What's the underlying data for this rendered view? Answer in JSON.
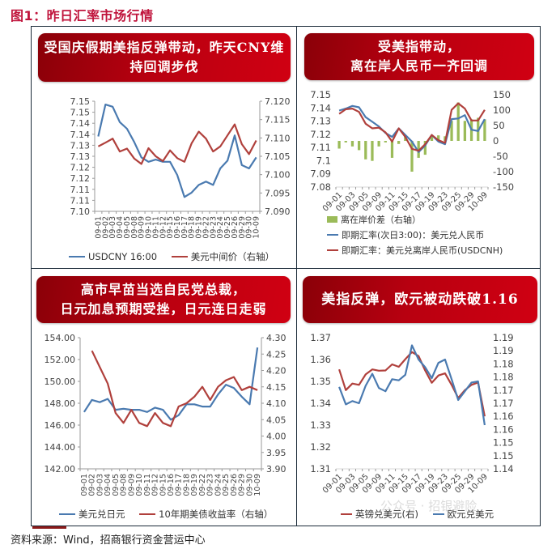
{
  "figure_title": "图1：昨日汇率市场行情",
  "source": "资料来源：Wind，招商银行资金营运中心",
  "watermark": "公众号 · 招银避险",
  "colors": {
    "title_red": "#c0143c",
    "banner_red": "#b80010",
    "series_blue": "#4a7ab0",
    "series_red": "#b0403c",
    "bar_green": "#9bbb59",
    "grid_border": "#1a2a38"
  },
  "panels": [
    {
      "banner": [
        "受国庆假期美指反弹带动，昨天CNY维",
        "持回调步伐"
      ],
      "legend": [
        "USDCNY 16:00",
        "美元中间价（右轴）"
      ]
    },
    {
      "banner": [
        "受美指带动，",
        "离在岸人民币一齐回调"
      ],
      "legend": [
        "离在岸价差（右轴）",
        "即期汇率(次日3:00)：美元兑人民币",
        "即期汇率：美元兑离岸人民币(USDCNH)"
      ]
    },
    {
      "banner": [
        "高市早苗当选自民党总裁，",
        "日元加息预期受挫，日元连日走弱"
      ],
      "legend": [
        "美元兑日元",
        "10年期美债收益率（右轴）"
      ]
    },
    {
      "banner": [
        "美指反弹，欧元被动跌破1.16"
      ],
      "legend": [
        "英镑兑美元(右)",
        "欧元兑美元"
      ]
    }
  ],
  "chart_data": [
    {
      "type": "line",
      "title": "受国庆假期美指反弹带动，昨天CNY维持回调步伐",
      "categories": [
        "09-01",
        "09-02",
        "09-03",
        "09-04",
        "09-05",
        "09-08",
        "09-09",
        "09-10",
        "09-11",
        "09-12",
        "09-15",
        "09-16",
        "09-17",
        "09-18",
        "09-19",
        "09-22",
        "09-23",
        "09-24",
        "09-25",
        "09-26",
        "09-29",
        "09-30",
        "10-09"
      ],
      "y_ticks": [
        "7.15",
        "7.15",
        "7.14",
        "7.14",
        "7.13",
        "7.13",
        "7.12",
        "7.12",
        "7.11",
        "7.11",
        "7.10"
      ],
      "y2_ticks": [
        "7.120",
        "7.115",
        "7.110",
        "7.105",
        "7.100",
        "7.095",
        "7.090"
      ],
      "ylim": [
        7.1,
        7.15
      ],
      "y2lim": [
        7.09,
        7.12
      ],
      "series": [
        {
          "name": "USDCNY 16:00",
          "axis": "left",
          "color": "#4a7ab0",
          "values": [
            7.134,
            7.1485,
            7.1475,
            7.1405,
            7.1375,
            7.1315,
            7.1245,
            7.1225,
            7.1235,
            7.1225,
            7.1225,
            7.1165,
            7.1065,
            7.1085,
            7.112,
            7.1135,
            7.112,
            7.1195,
            7.123,
            7.1345,
            7.121,
            7.1195,
            7.1245
          ]
        },
        {
          "name": "美元中间价（右轴）",
          "axis": "right",
          "color": "#b0403c",
          "values": [
            7.1077,
            7.1087,
            7.1098,
            7.1063,
            7.1071,
            7.1044,
            7.1029,
            7.1072,
            7.105,
            7.1037,
            7.1066,
            7.1045,
            7.1035,
            7.1085,
            7.1117,
            7.1098,
            7.1063,
            7.1077,
            7.1107,
            7.1137,
            7.1083,
            7.1056,
            7.1093
          ]
        }
      ],
      "legend_position": "bottom"
    },
    {
      "type": "line",
      "title": "受美指带动，离在岸人民币一齐回调",
      "categories": [
        "09-01",
        "09-02",
        "09-03",
        "09-04",
        "09-05",
        "09-08",
        "09-09",
        "09-10",
        "09-11",
        "09-12",
        "09-15",
        "09-16",
        "09-17",
        "09-18",
        "09-19",
        "09-22",
        "09-23",
        "09-24",
        "09-25",
        "09-26",
        "09-29",
        "09-30",
        "10-09"
      ],
      "x_tick_labels": [
        "09-01",
        "09-03",
        "09-05",
        "09-09",
        "09-11",
        "09-15",
        "09-17",
        "09-19",
        "09-23",
        "09-25",
        "09-29",
        "10-09"
      ],
      "y_ticks": [
        "7.15",
        "7.14",
        "7.13",
        "7.12",
        "7.11",
        "7.1",
        "7.09",
        "7.08"
      ],
      "y2_ticks": [
        "150",
        "100",
        "50",
        "0",
        "-50",
        "-100",
        "-150"
      ],
      "ylim": [
        7.08,
        7.15
      ],
      "y2lim": [
        -150,
        150
      ],
      "series": [
        {
          "name": "离在岸价差（右轴）",
          "axis": "right",
          "kind": "bar",
          "color": "#9bbb59",
          "values": [
            -25,
            -5,
            -18,
            -30,
            -60,
            -65,
            -18,
            -5,
            -55,
            -10,
            15,
            -100,
            -55,
            -45,
            15,
            18,
            15,
            65,
            125,
            65,
            70,
            75,
            70
          ]
        },
        {
          "name": "即期汇率(次日3:00)：美元兑人民币",
          "axis": "left",
          "color": "#4a7ab0",
          "values": [
            7.138,
            7.1395,
            7.1415,
            7.1405,
            7.133,
            7.1295,
            7.126,
            7.121,
            7.118,
            7.1245,
            7.1195,
            7.1145,
            7.1065,
            7.1115,
            7.1195,
            7.1145,
            7.1125,
            7.1315,
            7.132,
            7.1345,
            7.1235,
            7.1225,
            7.1315
          ]
        },
        {
          "name": "即期汇率：美元兑离岸人民币(USDCNH)",
          "axis": "left",
          "color": "#b0403c",
          "values": [
            7.1355,
            7.139,
            7.1395,
            7.137,
            7.128,
            7.1245,
            7.125,
            7.1215,
            7.1145,
            7.1245,
            7.118,
            7.109,
            7.1075,
            7.1125,
            7.1195,
            7.1155,
            7.1135,
            7.1385,
            7.1435,
            7.1395,
            7.1305,
            7.1305,
            7.1385
          ]
        }
      ],
      "legend_position": "bottom"
    },
    {
      "type": "line",
      "title": "高市早苗当选自民党总裁，日元加息预期受挫，日元连日走弱",
      "categories": [
        "09-01",
        "09-02",
        "09-03",
        "09-04",
        "09-05",
        "09-08",
        "09-09",
        "09-10",
        "09-11",
        "09-12",
        "09-15",
        "09-16",
        "09-17",
        "09-18",
        "09-19",
        "09-22",
        "09-23",
        "09-24",
        "09-25",
        "09-26",
        "09-29",
        "09-30",
        "10-09"
      ],
      "y_ticks": [
        "154.00",
        "152.00",
        "150.00",
        "148.00",
        "146.00",
        "144.00",
        "142.00"
      ],
      "y2_ticks": [
        "4.30",
        "4.25",
        "4.20",
        "4.15",
        "4.10",
        "4.05",
        "4.00",
        "3.95",
        "3.90"
      ],
      "ylim": [
        142,
        154
      ],
      "y2lim": [
        3.9,
        4.3
      ],
      "series": [
        {
          "name": "美元兑日元",
          "axis": "left",
          "color": "#4a7ab0",
          "values": [
            147.2,
            148.3,
            148.1,
            148.4,
            147.4,
            147.5,
            147.4,
            147.4,
            147.2,
            147.6,
            147.4,
            146.5,
            146.9,
            147.9,
            147.9,
            147.7,
            147.7,
            148.8,
            149.7,
            149.4,
            148.6,
            147.9,
            153.1
          ]
        },
        {
          "name": "10年期美债收益率（右轴）",
          "axis": "right",
          "color": "#b0403c",
          "values": [
            null,
            4.26,
            4.21,
            4.16,
            4.07,
            4.04,
            4.08,
            4.04,
            4.03,
            4.07,
            4.04,
            4.03,
            4.09,
            4.1,
            4.12,
            4.15,
            4.11,
            4.15,
            4.17,
            4.18,
            4.14,
            4.15,
            4.14
          ]
        }
      ],
      "legend_position": "bottom"
    },
    {
      "type": "line",
      "title": "美指反弹，欧元被动跌破1.16",
      "categories": [
        "09-01",
        "09-02",
        "09-03",
        "09-04",
        "09-05",
        "09-08",
        "09-09",
        "09-10",
        "09-11",
        "09-12",
        "09-15",
        "09-16",
        "09-17",
        "09-18",
        "09-19",
        "09-22",
        "09-23",
        "09-24",
        "09-25",
        "09-26",
        "09-29",
        "09-30",
        "10-09"
      ],
      "x_tick_labels": [
        "09-01",
        "09-03",
        "09-05",
        "09-09",
        "09-11",
        "09-15",
        "09-17",
        "09-19",
        "09-23",
        "09-25",
        "09-29",
        "10-09"
      ],
      "y_ticks": [
        "1.37",
        "1.36",
        "1.35",
        "1.34",
        "1.33",
        "1.32",
        "1.31"
      ],
      "y2_ticks": [
        "1.19",
        "1.19",
        "1.18",
        "1.18",
        "1.17",
        "1.17",
        "1.16",
        "1.16",
        "1.15",
        "1.15",
        "1.14"
      ],
      "ylim": [
        1.31,
        1.37
      ],
      "y2lim": [
        1.14,
        1.19
      ],
      "series": [
        {
          "name": "英镑兑美元(右)",
          "axis": "right",
          "color": "#b0403c",
          "values": [
            1.1779,
            1.17,
            1.1725,
            1.172,
            1.176,
            1.1779,
            1.1774,
            1.1775,
            1.1798,
            1.1789,
            1.1818,
            1.1845,
            1.183,
            1.1775,
            1.1728,
            1.1756,
            1.1764,
            1.172,
            1.167,
            1.17,
            1.172,
            1.1729,
            1.16
          ]
        },
        {
          "name": "欧元兑美元",
          "axis": "left",
          "color": "#4a7ab0",
          "values": [
            1.3475,
            1.3395,
            1.341,
            1.34,
            1.348,
            1.3535,
            1.347,
            1.3455,
            1.351,
            1.3505,
            1.353,
            1.3665,
            1.36,
            1.3565,
            1.3515,
            1.3585,
            1.36,
            1.351,
            1.3415,
            1.3455,
            1.3495,
            1.35,
            1.33
          ]
        }
      ],
      "legend_position": "bottom"
    }
  ]
}
